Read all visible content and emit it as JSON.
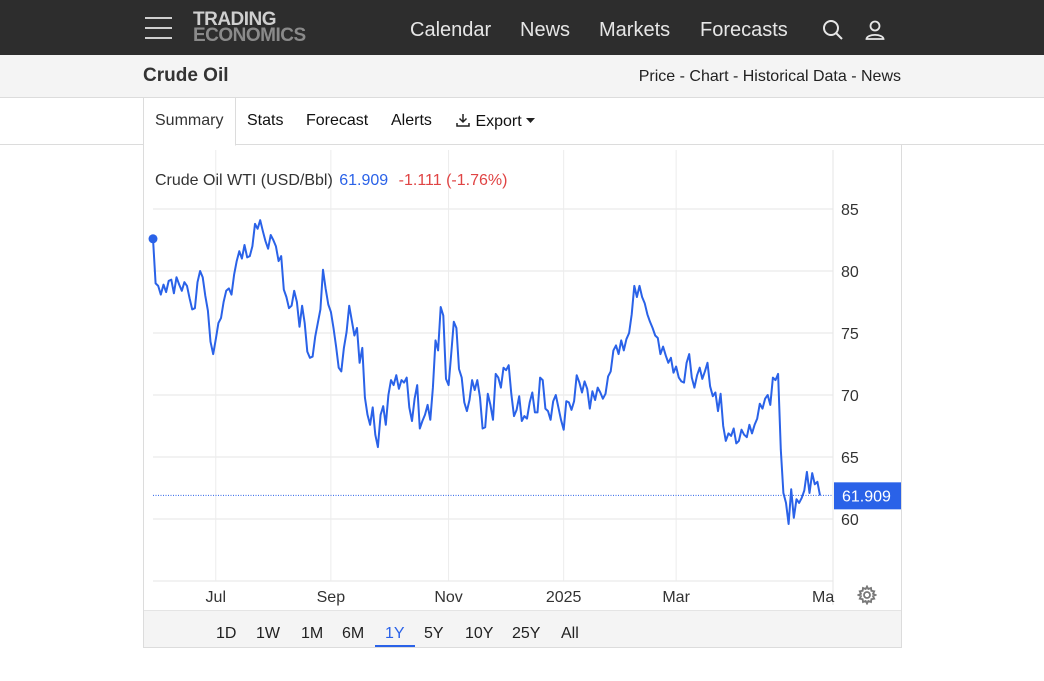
{
  "header": {
    "logo_line1": "TRADING",
    "logo_line2": "ECONOMICS",
    "nav": [
      "Calendar",
      "News",
      "Markets",
      "Forecasts"
    ],
    "icons": [
      "menu-icon",
      "search-icon",
      "user-icon"
    ]
  },
  "subheader": {
    "title": "Crude Oil",
    "links": "Price - Chart - Historical Data - News"
  },
  "tabs": {
    "summary": "Summary",
    "stats": "Stats",
    "forecast": "Forecast",
    "alerts": "Alerts",
    "export": "Export"
  },
  "legend": {
    "name": "Crude Oil WTI (USD/Bbl)",
    "price": "61.909",
    "change": "-1.111 (-1.76%)"
  },
  "ranges": [
    "1D",
    "1W",
    "1M",
    "6M",
    "1Y",
    "5Y",
    "10Y",
    "25Y",
    "All"
  ],
  "active_range": "1Y",
  "colors": {
    "series": "#2a62e8",
    "change_negative": "#e04444",
    "topbar": "#2d2d2d"
  },
  "chart_data": {
    "type": "line",
    "series_name": "Crude Oil WTI (USD/Bbl)",
    "last_value": "61.909",
    "x_ticks": [
      "Jul",
      "Sep",
      "Nov",
      "2025",
      "Mar",
      "Ma"
    ],
    "y_ticks": [
      "85",
      "80",
      "75",
      "70",
      "65",
      "60"
    ],
    "ylim": [
      55,
      90
    ],
    "grid": true,
    "x_note": "x expressed as trading-session index",
    "x_tick_positions": [
      24,
      68,
      113,
      157,
      200,
      236
    ],
    "y": [
      82.6,
      79.0,
      78.8,
      78.1,
      78.9,
      78.3,
      79.2,
      79.3,
      78.2,
      79.5,
      78.9,
      78.4,
      79.1,
      78.8,
      77.8,
      76.9,
      77.0,
      79.1,
      80.0,
      79.5,
      78.0,
      76.8,
      74.3,
      73.3,
      74.5,
      75.8,
      76.2,
      77.5,
      78.4,
      78.6,
      78.1,
      79.7,
      80.8,
      81.6,
      81.0,
      82.1,
      81.1,
      81.2,
      82.0,
      83.8,
      83.4,
      84.1,
      83.2,
      82.4,
      81.8,
      82.9,
      82.5,
      82.0,
      80.8,
      81.2,
      78.5,
      77.9,
      77.0,
      77.2,
      78.4,
      77.5,
      75.5,
      77.2,
      75.8,
      73.5,
      73.0,
      73.1,
      74.7,
      75.8,
      76.9,
      80.1,
      78.6,
      77.3,
      76.7,
      75.4,
      73.9,
      72.2,
      71.9,
      73.8,
      75.1,
      77.2,
      76.0,
      74.8,
      75.4,
      72.6,
      73.8,
      69.8,
      68.4,
      67.6,
      69.0,
      66.8,
      65.8,
      68.4,
      69.1,
      67.6,
      70.0,
      71.2,
      70.8,
      71.6,
      70.5,
      71.2,
      71.0,
      71.4,
      69.0,
      67.9,
      69.7,
      70.8,
      67.3,
      67.9,
      68.4,
      69.2,
      68.0,
      70.6,
      74.4,
      73.6,
      77.1,
      76.4,
      71.3,
      70.8,
      73.3,
      75.9,
      75.4,
      72.1,
      71.4,
      69.4,
      68.7,
      69.6,
      71.2,
      70.4,
      71.2,
      69.8,
      67.3,
      67.4,
      70.1,
      69.2,
      68.0,
      71.7,
      71.4,
      70.6,
      72.2,
      72.0,
      72.4,
      70.1,
      68.3,
      68.8,
      69.9,
      67.9,
      68.3,
      68.1,
      69.4,
      70.2,
      68.6,
      68.6,
      71.4,
      71.2,
      68.9,
      68.7,
      68.0,
      69.5,
      70.0,
      69.0,
      68.0,
      67.2,
      69.5,
      69.4,
      68.8,
      69.5,
      71.6,
      71.0,
      70.2,
      71.1,
      70.5,
      68.9,
      70.3,
      69.6,
      70.6,
      70.2,
      69.7,
      70.1,
      71.5,
      71.9,
      73.6,
      74.0,
      73.3,
      74.4,
      73.6,
      74.5,
      75.0,
      76.5,
      78.8,
      77.9,
      78.8,
      77.9,
      77.4,
      76.5,
      75.9,
      75.4,
      74.8,
      74.6,
      73.3,
      73.9,
      73.2,
      72.6,
      73.0,
      71.8,
      72.3,
      71.4,
      71.1,
      71.0,
      72.6,
      73.3,
      71.4,
      70.6,
      71.6,
      72.2,
      71.3,
      71.9,
      72.6,
      70.7,
      69.9,
      70.2,
      68.7,
      70.1,
      67.5,
      66.3,
      66.9,
      66.7,
      67.3,
      66.1,
      66.3,
      67.2,
      66.8,
      66.6,
      67.6,
      66.9,
      67.6,
      68.1,
      69.3,
      68.9,
      69.7,
      70.0,
      69.2,
      71.4,
      71.2,
      71.7,
      65.6,
      62.1,
      61.3,
      59.6,
      62.4,
      60.1,
      61.6,
      61.3,
      61.7,
      62.3,
      63.8,
      62.1,
      63.7,
      62.8,
      63.0,
      61.9
    ]
  }
}
